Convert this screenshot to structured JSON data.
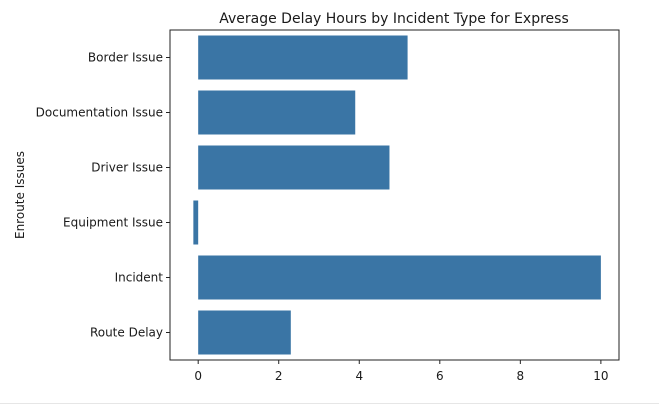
{
  "chart_data": {
    "type": "bar",
    "orientation": "horizontal",
    "title": "Average Delay Hours by Incident Type for Express",
    "xlabel": "",
    "ylabel": "Enroute Issues",
    "categories": [
      "Border Issue",
      "Documentation Issue",
      "Driver Issue",
      "Equipment Issue",
      "Incident",
      "Route Delay"
    ],
    "values": [
      5.2,
      3.9,
      4.75,
      -0.12,
      10.0,
      2.3
    ],
    "xlim": [
      -0.7,
      10.45
    ],
    "xticks": [
      0,
      2,
      4,
      6,
      8,
      10
    ],
    "grid": false,
    "bar_color": "#3a75a5"
  }
}
